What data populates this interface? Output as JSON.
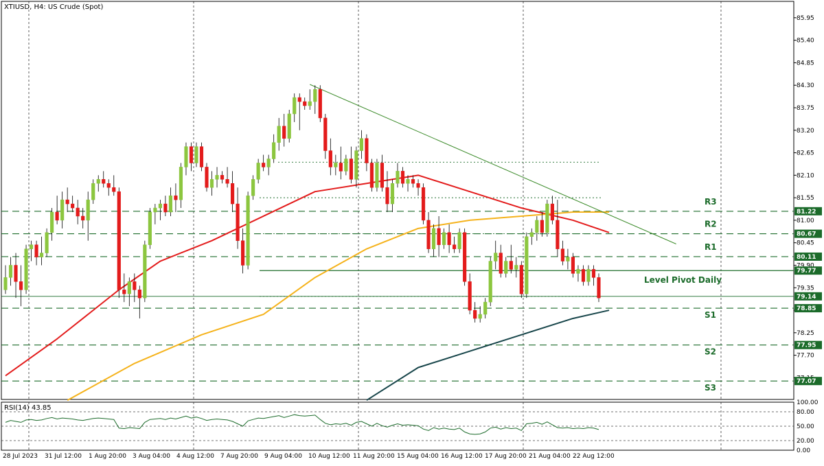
{
  "title": "XTIUSD, H4:  US Crude (Spot)",
  "rsi_label": "RSI(14) 43.85",
  "colors": {
    "bull": "#8cc63f",
    "bear": "#e31b1b",
    "ma_red": "#e31b1b",
    "ma_orange": "#f5b21a",
    "ma_dark": "#17454a",
    "level": "#1b6b2a",
    "trendline": "#3a8a28",
    "rsi": "#1b6b2a"
  },
  "chart_data": {
    "type": "candlestick",
    "symbol": "XTIUSD",
    "timeframe": "H4",
    "title": "XTIUSD, H4:  US Crude (Spot)",
    "ylim": [
      76.62,
      86.35
    ],
    "y_ticks": [
      "85.95",
      "85.40",
      "84.85",
      "84.30",
      "83.75",
      "83.20",
      "82.65",
      "82.10",
      "81.55",
      "81.00",
      "80.45",
      "79.90",
      "79.35",
      "78.80",
      "78.25",
      "77.70",
      "77.15"
    ],
    "x_ticks": [
      "28 Jul 2023",
      "31 Jul 12:00",
      "1 Aug 20:00",
      "3 Aug 04:00",
      "4 Aug 12:00",
      "7 Aug 20:00",
      "9 Aug 04:00",
      "10 Aug 12:00",
      "11 Aug 20:00",
      "15 Aug 04:00",
      "16 Aug 12:00",
      "17 Aug 20:00",
      "21 Aug 04:00",
      "22 Aug 12:00"
    ],
    "candles": [
      [
        79.3,
        79.9,
        79.2,
        79.6
      ],
      [
        79.6,
        80.1,
        79.4,
        79.9
      ],
      [
        79.9,
        80.2,
        79.1,
        79.5
      ],
      [
        79.5,
        79.9,
        78.9,
        79.3
      ],
      [
        79.3,
        80.4,
        79.2,
        80.3
      ],
      [
        80.3,
        80.5,
        80.0,
        80.4
      ],
      [
        80.4,
        80.5,
        79.9,
        80.1
      ],
      [
        80.1,
        80.6,
        79.9,
        80.2
      ],
      [
        80.2,
        80.8,
        80.1,
        80.7
      ],
      [
        80.7,
        81.3,
        80.5,
        81.2
      ],
      [
        81.2,
        81.6,
        80.9,
        81.0
      ],
      [
        81.0,
        81.7,
        80.8,
        81.5
      ],
      [
        81.5,
        81.8,
        81.2,
        81.4
      ],
      [
        81.4,
        81.6,
        81.2,
        81.3
      ],
      [
        81.3,
        81.5,
        80.9,
        81.1
      ],
      [
        81.1,
        81.3,
        80.8,
        81.0
      ],
      [
        81.0,
        81.7,
        80.5,
        81.5
      ],
      [
        81.5,
        82.0,
        81.4,
        81.9
      ],
      [
        81.9,
        82.1,
        81.7,
        82.0
      ],
      [
        82.0,
        82.2,
        81.8,
        81.9
      ],
      [
        81.9,
        82.0,
        81.6,
        81.8
      ],
      [
        81.8,
        82.1,
        81.6,
        81.7
      ],
      [
        81.7,
        81.8,
        79.1,
        79.3
      ],
      [
        79.3,
        79.7,
        79.0,
        79.2
      ],
      [
        79.2,
        79.6,
        78.9,
        79.5
      ],
      [
        79.5,
        79.7,
        79.0,
        79.3
      ],
      [
        79.3,
        79.4,
        78.6,
        79.1
      ],
      [
        79.1,
        80.5,
        79.0,
        80.4
      ],
      [
        80.4,
        81.3,
        80.3,
        81.2
      ],
      [
        81.2,
        81.4,
        80.9,
        81.3
      ],
      [
        81.3,
        81.5,
        81.0,
        81.4
      ],
      [
        81.4,
        81.6,
        81.1,
        81.2
      ],
      [
        81.2,
        81.8,
        81.1,
        81.6
      ],
      [
        81.6,
        81.9,
        81.2,
        81.5
      ],
      [
        81.5,
        82.4,
        81.3,
        82.3
      ],
      [
        82.3,
        82.9,
        82.1,
        82.8
      ],
      [
        82.8,
        82.9,
        82.2,
        82.4
      ],
      [
        82.4,
        82.9,
        82.3,
        82.8
      ],
      [
        82.8,
        82.9,
        82.2,
        82.3
      ],
      [
        82.3,
        82.4,
        81.7,
        81.8
      ],
      [
        81.8,
        82.2,
        81.6,
        82.0
      ],
      [
        82.0,
        82.3,
        81.8,
        82.1
      ],
      [
        82.1,
        82.2,
        81.9,
        82.0
      ],
      [
        82.0,
        82.3,
        81.8,
        81.9
      ],
      [
        81.9,
        82.2,
        81.2,
        81.4
      ],
      [
        81.4,
        81.8,
        80.3,
        80.5
      ],
      [
        80.5,
        80.8,
        79.7,
        79.9
      ],
      [
        79.9,
        81.7,
        79.8,
        81.6
      ],
      [
        81.6,
        82.1,
        81.5,
        82.0
      ],
      [
        82.0,
        82.5,
        81.9,
        82.4
      ],
      [
        82.4,
        82.6,
        82.2,
        82.3
      ],
      [
        82.3,
        82.6,
        82.1,
        82.5
      ],
      [
        82.5,
        83.1,
        82.4,
        82.9
      ],
      [
        82.9,
        83.5,
        82.7,
        83.3
      ],
      [
        83.3,
        83.6,
        82.8,
        83.0
      ],
      [
        83.0,
        83.7,
        82.9,
        83.6
      ],
      [
        83.6,
        84.1,
        83.4,
        84.0
      ],
      [
        84.0,
        84.1,
        83.2,
        83.9
      ],
      [
        83.9,
        84.0,
        83.7,
        83.8
      ],
      [
        83.8,
        84.2,
        83.7,
        83.9
      ],
      [
        83.9,
        84.3,
        83.6,
        84.2
      ],
      [
        84.2,
        84.3,
        83.4,
        83.5
      ],
      [
        83.5,
        83.6,
        82.5,
        82.7
      ],
      [
        82.7,
        83.0,
        82.1,
        82.3
      ],
      [
        82.3,
        82.6,
        82.1,
        82.4
      ],
      [
        82.4,
        82.8,
        82.0,
        82.2
      ],
      [
        82.2,
        82.6,
        82.1,
        82.5
      ],
      [
        82.5,
        82.8,
        81.9,
        82.0
      ],
      [
        82.0,
        82.8,
        81.8,
        82.7
      ],
      [
        82.7,
        83.2,
        82.5,
        83.0
      ],
      [
        83.0,
        83.1,
        82.2,
        82.4
      ],
      [
        82.4,
        82.5,
        81.7,
        81.8
      ],
      [
        81.8,
        82.5,
        81.7,
        82.4
      ],
      [
        82.4,
        82.6,
        81.7,
        81.8
      ],
      [
        81.8,
        82.2,
        81.2,
        81.4
      ],
      [
        81.4,
        82.0,
        81.2,
        81.9
      ],
      [
        81.9,
        82.4,
        81.8,
        82.2
      ],
      [
        82.2,
        82.3,
        81.8,
        81.9
      ],
      [
        81.9,
        82.1,
        81.7,
        82.0
      ],
      [
        82.0,
        82.1,
        81.8,
        81.9
      ],
      [
        81.9,
        82.0,
        81.6,
        81.8
      ],
      [
        81.8,
        81.9,
        80.9,
        81.0
      ],
      [
        81.0,
        81.2,
        80.2,
        80.3
      ],
      [
        80.3,
        80.9,
        80.1,
        80.8
      ],
      [
        80.8,
        81.1,
        80.1,
        80.4
      ],
      [
        80.4,
        80.8,
        80.3,
        80.7
      ],
      [
        80.7,
        80.9,
        80.2,
        80.4
      ],
      [
        80.4,
        80.6,
        80.2,
        80.3
      ],
      [
        80.3,
        80.8,
        80.2,
        80.7
      ],
      [
        80.7,
        80.8,
        79.4,
        79.5
      ],
      [
        79.5,
        79.7,
        78.7,
        78.8
      ],
      [
        78.8,
        79.0,
        78.5,
        78.6
      ],
      [
        78.6,
        78.9,
        78.5,
        78.7
      ],
      [
        78.7,
        79.1,
        78.6,
        79.0
      ],
      [
        79.0,
        80.1,
        78.9,
        80.0
      ],
      [
        80.0,
        80.5,
        79.8,
        80.2
      ],
      [
        80.2,
        80.4,
        79.6,
        79.7
      ],
      [
        79.7,
        80.1,
        79.6,
        80.0
      ],
      [
        80.0,
        80.4,
        79.7,
        79.8
      ],
      [
        79.8,
        80.1,
        79.6,
        79.9
      ],
      [
        79.9,
        80.0,
        79.1,
        79.2
      ],
      [
        79.2,
        80.7,
        79.1,
        80.6
      ],
      [
        80.6,
        80.8,
        80.4,
        80.7
      ],
      [
        80.7,
        81.1,
        80.5,
        81.0
      ],
      [
        81.0,
        81.2,
        80.6,
        80.7
      ],
      [
        80.7,
        81.5,
        80.6,
        81.4
      ],
      [
        81.4,
        81.6,
        80.9,
        81.0
      ],
      [
        81.0,
        81.5,
        80.1,
        80.3
      ],
      [
        80.3,
        80.5,
        79.9,
        80.0
      ],
      [
        80.0,
        80.3,
        79.8,
        80.1
      ],
      [
        80.1,
        80.2,
        79.6,
        79.7
      ],
      [
        79.7,
        79.9,
        79.5,
        79.8
      ],
      [
        79.8,
        79.9,
        79.4,
        79.5
      ],
      [
        79.5,
        79.9,
        79.4,
        79.8
      ],
      [
        79.8,
        79.9,
        79.4,
        79.6
      ],
      [
        79.6,
        79.7,
        79.0,
        79.1
      ]
    ],
    "moving_averages": [
      {
        "color": "red",
        "values": [
          [
            0,
            77.2
          ],
          [
            10,
            78.1
          ],
          [
            22,
            79.3
          ],
          [
            30,
            80.0
          ],
          [
            40,
            80.5
          ],
          [
            50,
            81.1
          ],
          [
            60,
            81.7
          ],
          [
            70,
            81.9
          ],
          [
            80,
            82.1
          ],
          [
            90,
            81.7
          ],
          [
            100,
            81.3
          ],
          [
            110,
            81.0
          ],
          [
            117,
            80.7
          ]
        ]
      },
      {
        "color": "orange",
        "values": [
          [
            12,
            76.6
          ],
          [
            25,
            77.5
          ],
          [
            38,
            78.2
          ],
          [
            50,
            78.7
          ],
          [
            60,
            79.6
          ],
          [
            70,
            80.3
          ],
          [
            80,
            80.8
          ],
          [
            90,
            81.0
          ],
          [
            100,
            81.1
          ],
          [
            110,
            81.2
          ],
          [
            117,
            81.2
          ]
        ]
      },
      {
        "color": "dark",
        "values": [
          [
            70,
            76.6
          ],
          [
            80,
            77.4
          ],
          [
            90,
            77.8
          ],
          [
            100,
            78.2
          ],
          [
            110,
            78.6
          ],
          [
            117,
            78.8
          ]
        ]
      }
    ],
    "trendline": {
      "from": [
        59,
        84.32
      ],
      "to": [
        130,
        80.42
      ]
    },
    "levels": [
      {
        "name": "R3",
        "price": 81.22,
        "label": "R3",
        "tag": "81.22"
      },
      {
        "name": "R2",
        "price": 80.67,
        "label": "R2",
        "tag": "80.67"
      },
      {
        "name": "R1",
        "price": 80.11,
        "label": "R1",
        "tag": "80.11"
      },
      {
        "name": "Pivot",
        "price": 79.77,
        "label": "Level Pivot Daily",
        "tag": "79.77"
      },
      {
        "name": "S1",
        "price": 78.85,
        "label": "S1",
        "tag": "78.85"
      },
      {
        "name": "S2",
        "price": 77.95,
        "label": "S2",
        "tag": "77.95"
      },
      {
        "name": "S3",
        "price": 77.07,
        "label": "S3",
        "tag": "77.07"
      }
    ],
    "current_price": {
      "tag": "79.14",
      "price": 79.14
    },
    "rsi": {
      "label": "RSI(14) 43.85",
      "ylim": [
        0,
        100
      ],
      "ticks": [
        "100.00",
        "80.00",
        "50.00",
        "20.00",
        "0.00"
      ],
      "values": [
        58,
        62,
        60,
        58,
        63,
        64,
        62,
        63,
        66,
        68,
        65,
        67,
        66,
        65,
        63,
        62,
        64,
        66,
        67,
        66,
        65,
        64,
        46,
        45,
        47,
        46,
        45,
        58,
        64,
        65,
        66,
        64,
        67,
        65,
        68,
        71,
        67,
        69,
        66,
        62,
        64,
        65,
        64,
        63,
        60,
        55,
        50,
        61,
        64,
        67,
        66,
        68,
        70,
        72,
        68,
        71,
        74,
        72,
        71,
        72,
        73,
        64,
        56,
        53,
        55,
        54,
        56,
        52,
        58,
        60,
        55,
        50,
        56,
        51,
        48,
        52,
        55,
        52,
        53,
        52,
        51,
        44,
        41,
        47,
        44,
        46,
        44,
        43,
        46,
        38,
        34,
        33,
        34,
        38,
        46,
        48,
        44,
        47,
        45,
        46,
        41,
        55,
        56,
        58,
        54,
        59,
        53,
        47,
        46,
        47,
        45,
        46,
        45,
        47,
        46,
        43
      ]
    }
  }
}
